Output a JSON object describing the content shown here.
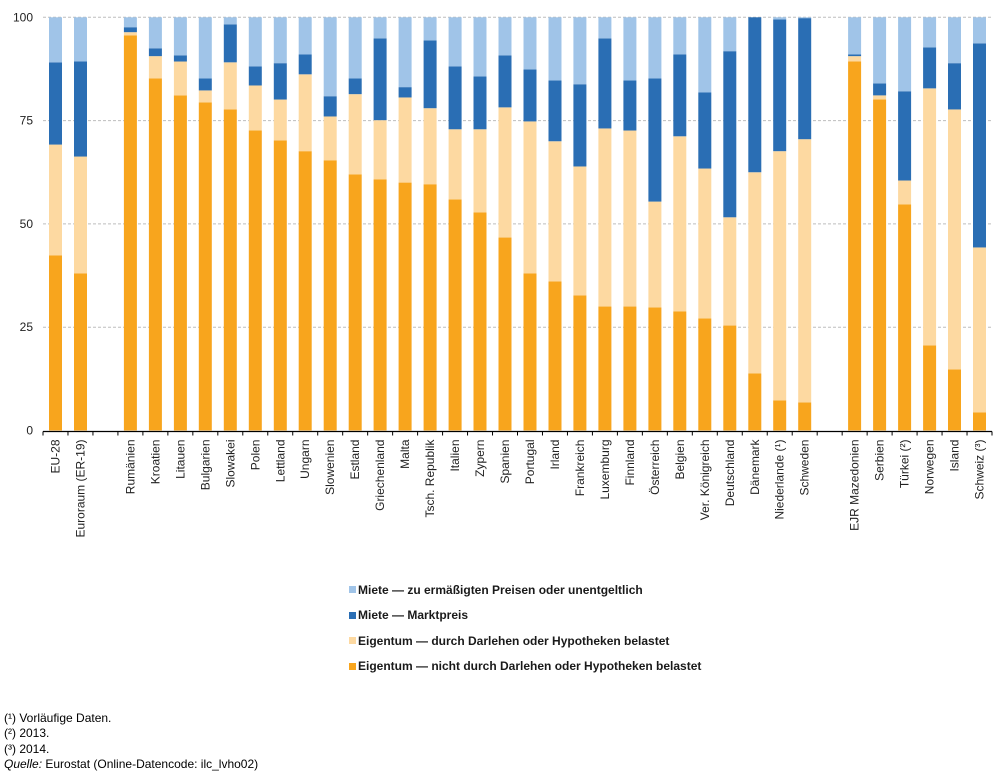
{
  "chart_data": {
    "type": "bar",
    "stacked": true,
    "title": "",
    "xlabel": "",
    "ylabel": "",
    "ylim": [
      0,
      100
    ],
    "yticks": [
      0,
      25,
      50,
      75,
      100
    ],
    "grid": true,
    "legend_position": "bottom-center",
    "categories": [
      "EU-28",
      "Euroraum (ER-19)",
      "",
      "Rumänien",
      "Kroatien",
      "Litauen",
      "Bulgarien",
      "Slowakei",
      "Polen",
      "Lettland",
      "Ungarn",
      "Slowenien",
      "Estland",
      "Griechenland",
      "Malta",
      "Tsch. Republik",
      "Italien",
      "Zypern",
      "Spanien",
      "Portugal",
      "Irland",
      "Frankreich",
      "Luxemburg",
      "Finnland",
      "Österreich",
      "Belgien",
      "Ver. Königreich",
      "Deutschland",
      "Dänemark",
      "Niederlande (¹)",
      "Schweden",
      "",
      "EJR Mazedonien",
      "Serbien",
      "Türkei (²)",
      "Norwegen",
      "Island",
      "Schweiz (³)"
    ],
    "series": [
      {
        "name": "Eigentum — nicht durch Darlehen oder Hypotheken belastet",
        "color": "#f8a51d",
        "values": [
          42.4,
          38.0,
          null,
          95.6,
          85.2,
          81.1,
          79.4,
          77.7,
          72.6,
          70.2,
          67.6,
          65.4,
          62.0,
          60.8,
          60.0,
          59.6,
          55.9,
          52.8,
          46.7,
          38.0,
          36.1,
          32.7,
          30.0,
          30.0,
          29.8,
          28.8,
          27.1,
          25.4,
          13.8,
          7.3,
          6.8,
          null,
          89.3,
          80.1,
          54.7,
          20.6,
          14.8,
          4.4
        ]
      },
      {
        "name": "Eigentum — durch Darlehen oder Hypotheken belastet",
        "color": "#fdd9a1",
        "values": [
          26.8,
          28.3,
          null,
          0.8,
          5.4,
          8.2,
          2.9,
          11.4,
          10.9,
          9.9,
          18.6,
          10.6,
          19.4,
          14.3,
          20.6,
          18.4,
          17.0,
          20.1,
          31.5,
          36.8,
          33.9,
          31.2,
          43.1,
          42.6,
          25.6,
          42.4,
          36.3,
          26.2,
          48.7,
          60.3,
          63.7,
          null,
          1.3,
          1.0,
          5.8,
          62.2,
          62.9,
          39.9
        ]
      },
      {
        "name": "Miete — Marktpreis",
        "color": "#2a6eb4",
        "values": [
          19.9,
          23.0,
          null,
          1.2,
          1.9,
          1.5,
          2.9,
          9.2,
          4.6,
          8.8,
          4.8,
          4.9,
          3.8,
          19.8,
          2.5,
          16.4,
          15.2,
          12.8,
          12.6,
          12.6,
          14.7,
          19.9,
          21.8,
          12.1,
          29.8,
          19.8,
          18.4,
          40.2,
          37.5,
          31.9,
          29.3,
          null,
          0.4,
          2.9,
          21.6,
          9.9,
          11.2,
          49.4
        ]
      },
      {
        "name": "Miete — zu ermäßigten Preisen oder unentgeltlich",
        "color": "#a0c4e8",
        "values": [
          10.9,
          10.7,
          null,
          2.4,
          7.5,
          9.2,
          14.8,
          1.7,
          11.9,
          11.1,
          9.0,
          19.1,
          14.8,
          5.1,
          16.9,
          5.6,
          11.9,
          14.3,
          9.2,
          12.6,
          15.3,
          16.2,
          5.1,
          15.3,
          14.8,
          9.0,
          18.2,
          8.2,
          0.0,
          0.5,
          0.2,
          null,
          9.0,
          16.0,
          17.9,
          7.3,
          11.1,
          6.3
        ]
      }
    ],
    "legend_order": [
      3,
      2,
      1,
      0
    ]
  },
  "legend": {
    "items": [
      {
        "label": "Miete — zu ermäßigten Preisen oder unentgeltlich",
        "color": "#a0c4e8"
      },
      {
        "label": "Miete — Marktpreis",
        "color": "#2a6eb4"
      },
      {
        "label": "Eigentum — durch Darlehen oder Hypotheken belastet",
        "color": "#fdd9a1"
      },
      {
        "label": "Eigentum — nicht durch Darlehen oder Hypotheken belastet",
        "color": "#f8a51d"
      }
    ]
  },
  "footnotes": {
    "note1": "(¹) Vorläufige Daten.",
    "note2": "(²) 2013.",
    "note3": "(³) 2014.",
    "source_label": "Quelle:",
    "source_text": " Eurostat (Online-Datencode: ilc_lvho02)"
  }
}
